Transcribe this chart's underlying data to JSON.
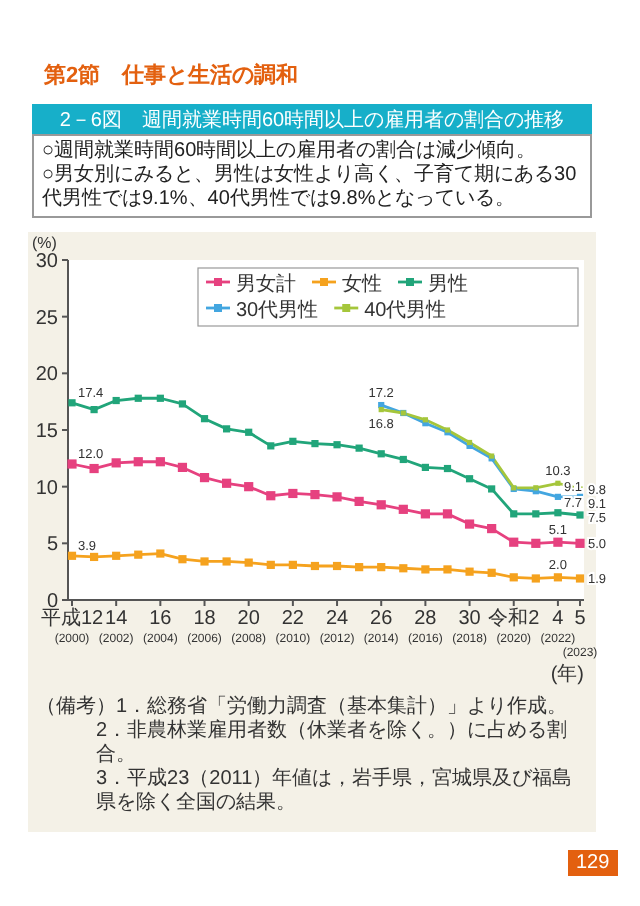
{
  "chart_data": {
    "type": "line",
    "title": "2－6図　週間就業時間60時間以上の雇用者の割合の推移",
    "subtitle": "○週間就業時間60時間以上の雇用者の割合は減少傾向。\n○男女別にみると、男性は女性より高く、子育て期にある30代男性では9.1%、40代男性では9.8%となっている。",
    "ylabel": "(%)",
    "xlabel": "(年)",
    "annotations": [
      "第2節　仕事と生活の調和",
      "（備考）1．総務省「労働力調査（基本集計）」より作成。",
      "2．非農林業雇用者数（休業者を除く。）に占める割合。",
      "3．平成23（2011）年値は，岩手県，宮城県及び福島県を除く全国の結果。",
      "129"
    ],
    "categories": [
      "平成12\n(2000)",
      null,
      "14\n(2002)",
      null,
      "16\n(2004)",
      null,
      "18\n(2006)",
      null,
      "20\n(2008)",
      null,
      "22\n(2010)",
      null,
      "24\n(2012)",
      null,
      "26\n(2014)",
      null,
      "28\n(2016)",
      null,
      "30\n(2018)",
      null,
      "令和2\n(2020)",
      null,
      "4\n(2022)",
      "5\n(2023)"
    ],
    "ylim": [
      0,
      30
    ],
    "yticks": [
      0,
      5,
      10,
      15,
      20,
      25,
      30
    ],
    "marker": "square",
    "line_style": "solid",
    "legend": "top right",
    "series": [
      {
        "name": "男女計",
        "color": "#e6417f",
        "values": [
          12.0,
          11.6,
          12.1,
          12.2,
          12.2,
          11.7,
          10.8,
          10.3,
          10.0,
          9.2,
          9.4,
          9.3,
          9.1,
          8.7,
          8.4,
          8.0,
          7.6,
          7.6,
          6.7,
          6.3,
          5.1,
          5.0,
          5.1,
          5.0
        ],
        "value_labels": [
          "12.0",
          null,
          null,
          null,
          null,
          null,
          null,
          null,
          null,
          null,
          null,
          null,
          null,
          null,
          null,
          null,
          null,
          null,
          null,
          null,
          null,
          null,
          "5.1",
          "5.0"
        ]
      },
      {
        "name": "女性",
        "color": "#f5a21e",
        "values": [
          3.9,
          3.8,
          3.9,
          4.0,
          4.1,
          3.6,
          3.4,
          3.4,
          3.3,
          3.1,
          3.1,
          3.0,
          3.0,
          2.9,
          2.9,
          2.8,
          2.7,
          2.7,
          2.5,
          2.4,
          2.0,
          1.9,
          2.0,
          1.9
        ],
        "value_labels": [
          "3.9",
          null,
          null,
          null,
          null,
          null,
          null,
          null,
          null,
          null,
          null,
          null,
          null,
          null,
          null,
          null,
          null,
          null,
          null,
          null,
          null,
          null,
          "2.0",
          "1.9"
        ]
      },
      {
        "name": "男性",
        "color": "#21a57a",
        "values": [
          17.4,
          16.8,
          17.6,
          17.8,
          17.8,
          17.3,
          16.0,
          15.1,
          14.8,
          13.6,
          14.0,
          13.8,
          13.7,
          13.4,
          12.9,
          12.4,
          11.7,
          11.6,
          10.7,
          9.8,
          7.6,
          7.6,
          7.7,
          7.5
        ],
        "value_labels": [
          "17.4",
          null,
          null,
          null,
          null,
          null,
          null,
          null,
          null,
          null,
          null,
          null,
          null,
          null,
          null,
          null,
          null,
          null,
          null,
          null,
          null,
          null,
          "7.7",
          "7.5"
        ]
      },
      {
        "name": "30代男性",
        "color": "#43a6e0",
        "values": [
          null,
          null,
          null,
          null,
          null,
          null,
          null,
          null,
          null,
          null,
          null,
          null,
          null,
          null,
          17.2,
          16.5,
          15.6,
          14.8,
          13.6,
          12.5,
          9.8,
          9.6,
          9.1,
          9.1
        ],
        "value_labels": [
          null,
          null,
          null,
          null,
          null,
          null,
          null,
          null,
          null,
          null,
          null,
          null,
          null,
          null,
          "17.2",
          null,
          null,
          null,
          null,
          null,
          null,
          null,
          "9.1",
          "9.1"
        ]
      },
      {
        "name": "40代男性",
        "color": "#a5c63b",
        "values": [
          null,
          null,
          null,
          null,
          null,
          null,
          null,
          null,
          null,
          null,
          null,
          null,
          null,
          null,
          16.8,
          16.5,
          15.9,
          15.0,
          13.9,
          12.7,
          9.9,
          9.9,
          10.3,
          9.8
        ],
        "value_labels": [
          null,
          null,
          null,
          null,
          null,
          null,
          null,
          null,
          null,
          null,
          null,
          null,
          null,
          null,
          "16.8",
          null,
          null,
          null,
          null,
          null,
          null,
          null,
          "10.3",
          "9.8"
        ]
      }
    ]
  }
}
